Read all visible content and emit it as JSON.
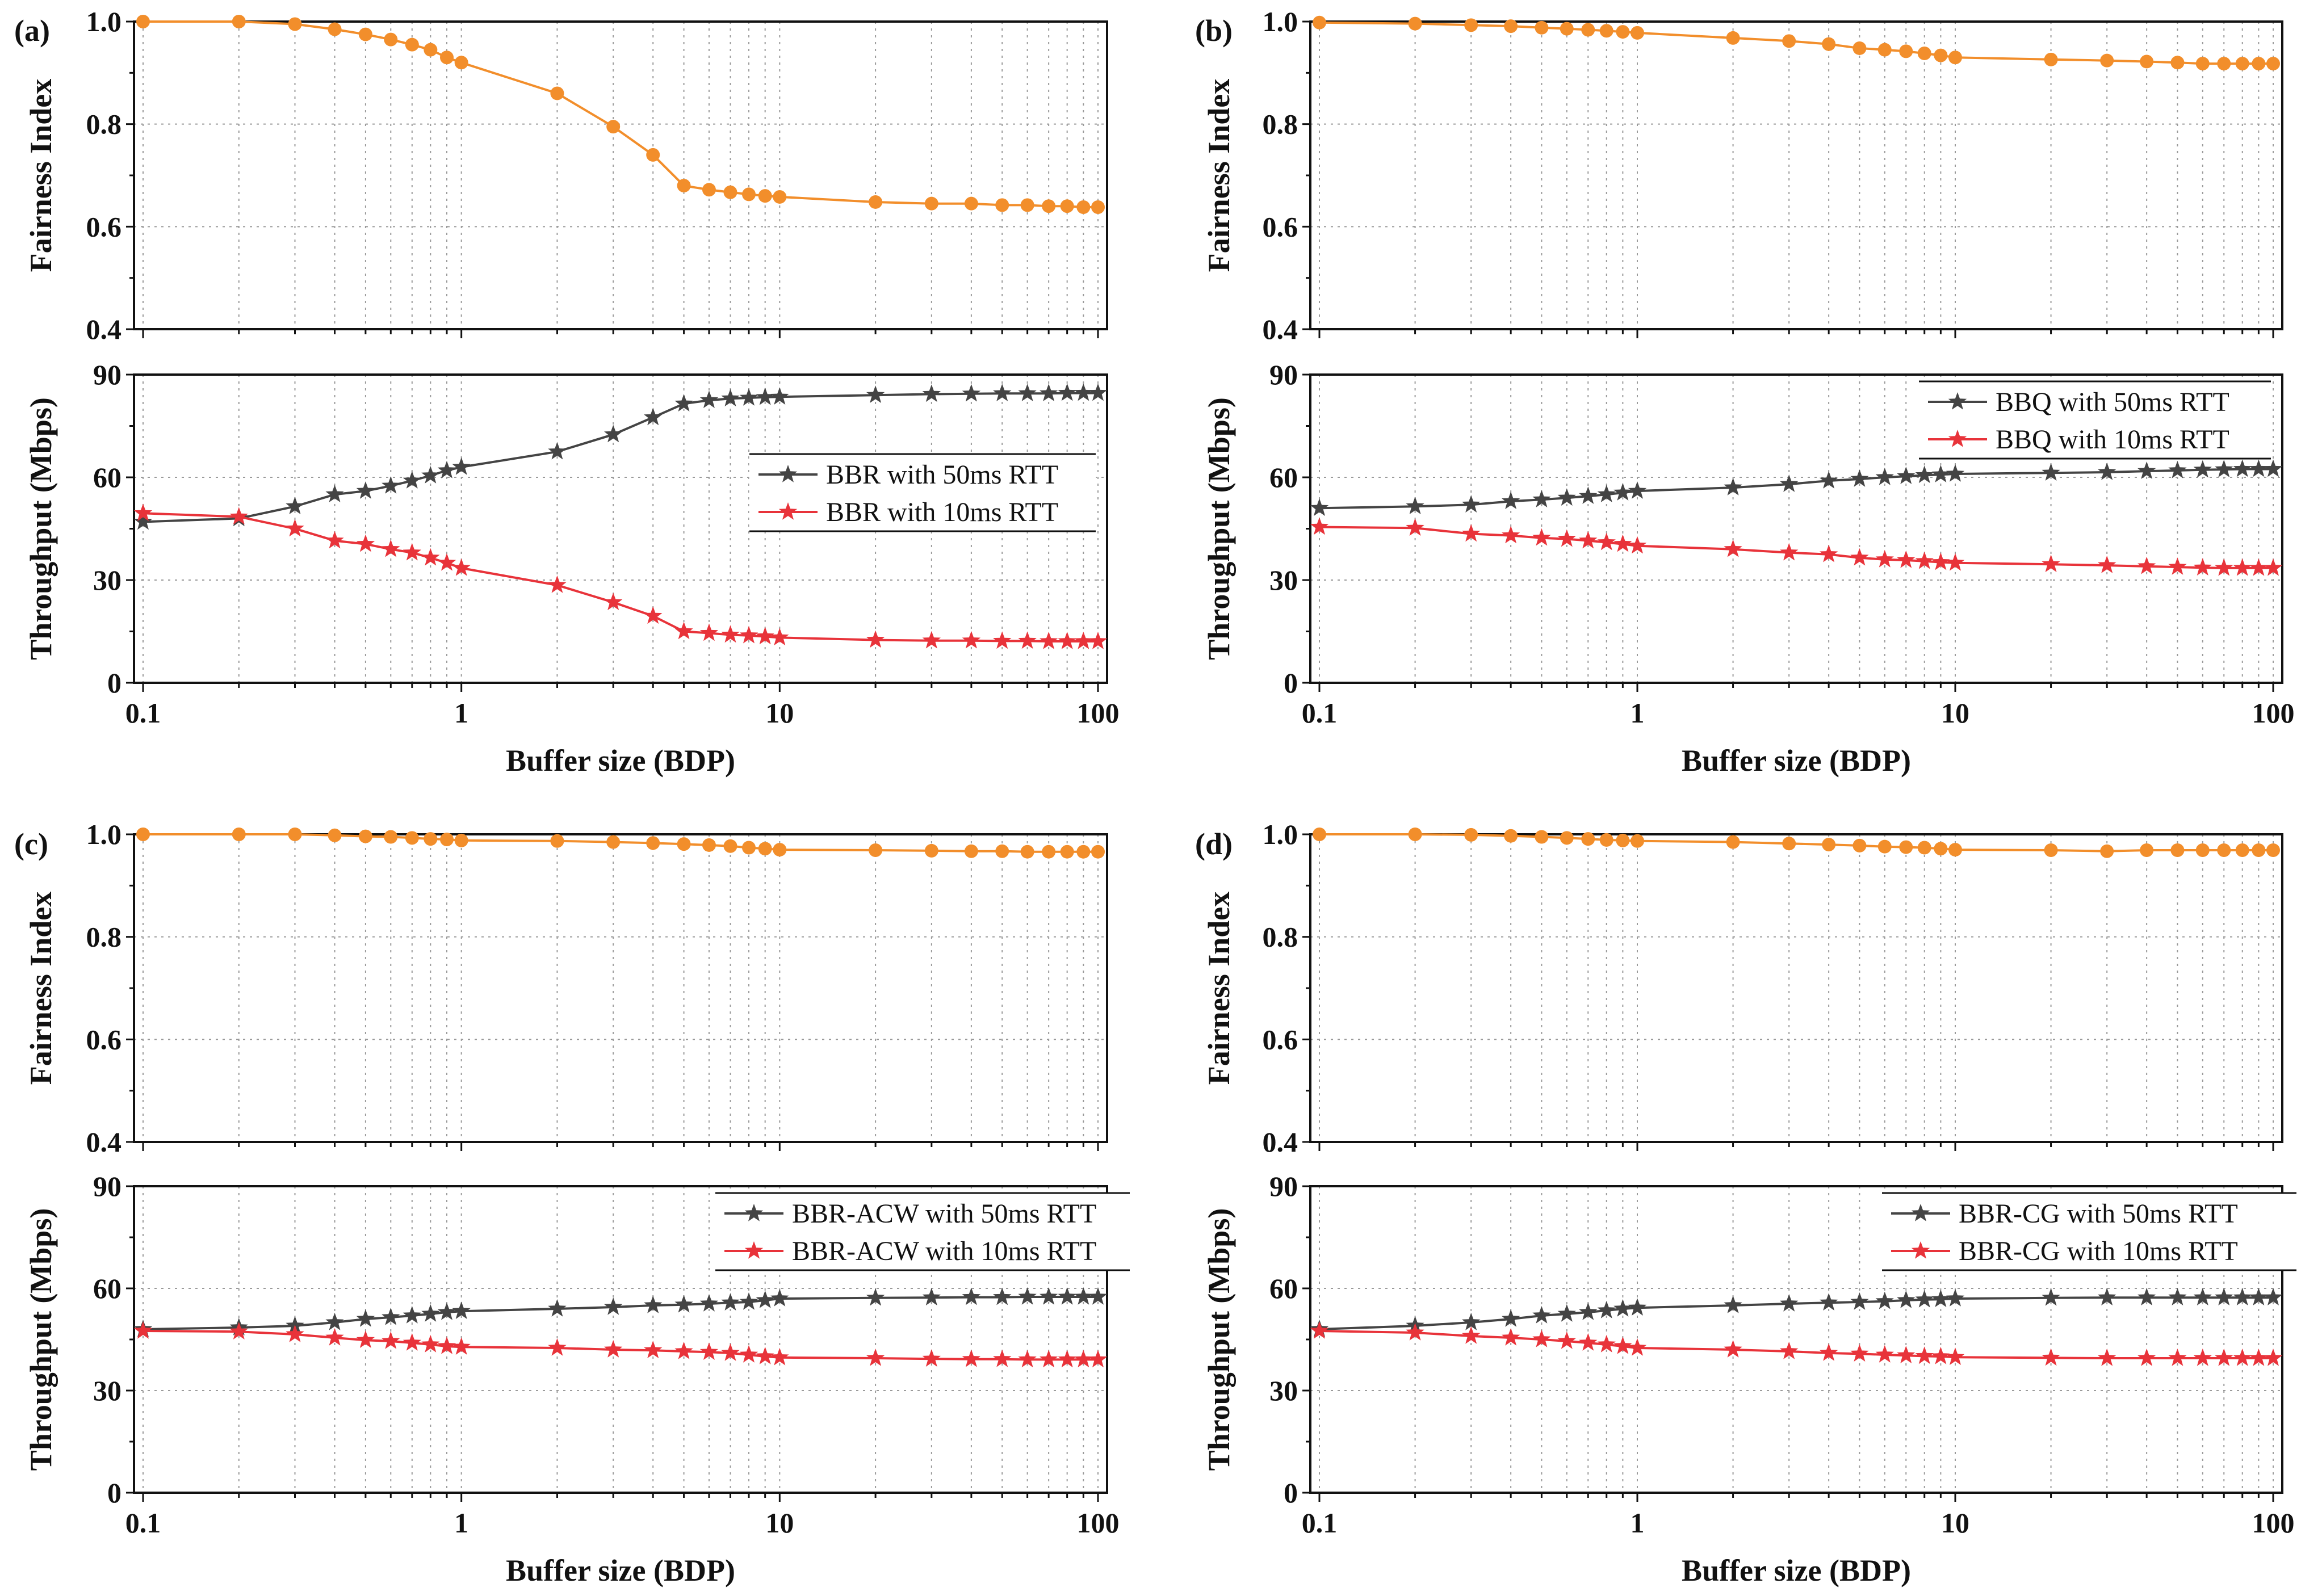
{
  "colors": {
    "fairness": "#F28E2B",
    "rtt50": "#444444",
    "rtt10": "#E8333A",
    "grid": "#9a9a9a",
    "axis": "#111111"
  },
  "chart_data": [
    {
      "panel": "(a)",
      "type": "line",
      "x": [
        0.1,
        0.2,
        0.3,
        0.4,
        0.5,
        0.6,
        0.7,
        0.8,
        0.9,
        1,
        2,
        3,
        4,
        5,
        6,
        7,
        8,
        9,
        10,
        20,
        30,
        40,
        50,
        60,
        70,
        80,
        90,
        100
      ],
      "fairness": {
        "ylabel": "Fairness Index",
        "ylim": [
          0.4,
          1.0
        ],
        "yticks": [
          "0.4",
          "0.6",
          "0.8",
          "1.0"
        ],
        "values": [
          1.0,
          1.0,
          0.995,
          0.985,
          0.975,
          0.965,
          0.955,
          0.945,
          0.93,
          0.92,
          0.86,
          0.795,
          0.74,
          0.68,
          0.672,
          0.667,
          0.663,
          0.66,
          0.658,
          0.648,
          0.645,
          0.645,
          0.642,
          0.642,
          0.64,
          0.64,
          0.638,
          0.638
        ]
      },
      "throughput": {
        "ylabel": "Throughput (Mbps)",
        "ylim": [
          0,
          90
        ],
        "yticks": [
          "0",
          "30",
          "60",
          "90"
        ],
        "series": [
          {
            "name": "BBR with 50ms RTT",
            "values": [
              47,
              48,
              51.5,
              55,
              56,
              57.5,
              59,
              60.5,
              62,
              63,
              67.5,
              72.5,
              77.5,
              81.5,
              82.5,
              83,
              83.2,
              83.4,
              83.5,
              84,
              84.3,
              84.4,
              84.5,
              84.5,
              84.5,
              84.6,
              84.6,
              84.6
            ]
          },
          {
            "name": "BBR with 10ms RTT",
            "values": [
              49.5,
              48.5,
              45,
              41.5,
              40.5,
              39,
              38,
              36.5,
              35,
              33.5,
              28.5,
              23.5,
              19.5,
              15,
              14.5,
              14,
              13.8,
              13.5,
              13.2,
              12.5,
              12.3,
              12.3,
              12.2,
              12.2,
              12.1,
              12.1,
              12.1,
              12.1
            ]
          }
        ],
        "legend": "right-middle"
      },
      "xlabel": "Buffer size (BDP)",
      "xticks": [
        "0.1",
        "1",
        "10",
        "100"
      ]
    },
    {
      "panel": "(b)",
      "type": "line",
      "x": [
        0.1,
        0.2,
        0.3,
        0.4,
        0.5,
        0.6,
        0.7,
        0.8,
        0.9,
        1,
        2,
        3,
        4,
        5,
        6,
        7,
        8,
        9,
        10,
        20,
        30,
        40,
        50,
        60,
        70,
        80,
        90,
        100
      ],
      "fairness": {
        "ylabel": "Fairness Index",
        "ylim": [
          0.4,
          1.0
        ],
        "yticks": [
          "0.4",
          "0.6",
          "0.8",
          "1.0"
        ],
        "values": [
          0.998,
          0.996,
          0.993,
          0.991,
          0.988,
          0.986,
          0.984,
          0.982,
          0.98,
          0.978,
          0.968,
          0.962,
          0.956,
          0.948,
          0.945,
          0.942,
          0.938,
          0.934,
          0.93,
          0.926,
          0.924,
          0.922,
          0.92,
          0.918,
          0.918,
          0.918,
          0.918,
          0.918
        ]
      },
      "throughput": {
        "ylabel": "Throughput (Mbps)",
        "ylim": [
          0,
          90
        ],
        "yticks": [
          "0",
          "30",
          "60",
          "90"
        ],
        "series": [
          {
            "name": "BBQ with 50ms RTT",
            "values": [
              51,
              51.5,
              52,
              53,
              53.5,
              54,
              54.5,
              55,
              55.5,
              56,
              57,
              58,
              59,
              59.5,
              60,
              60.3,
              60.6,
              60.8,
              61,
              61.3,
              61.5,
              61.8,
              62,
              62.2,
              62.3,
              62.4,
              62.4,
              62.4
            ]
          },
          {
            "name": "BBQ with 10ms RTT",
            "values": [
              45.5,
              45.2,
              43.5,
              43,
              42.3,
              42,
              41.5,
              41,
              40.5,
              40,
              39,
              38,
              37.5,
              36.5,
              36,
              35.8,
              35.5,
              35.2,
              35,
              34.6,
              34.3,
              34,
              33.8,
              33.6,
              33.5,
              33.5,
              33.5,
              33.5
            ]
          }
        ],
        "legend": "top-right"
      },
      "xlabel": "Buffer size (BDP)",
      "xticks": [
        "0.1",
        "1",
        "10",
        "100"
      ]
    },
    {
      "panel": "(c)",
      "type": "line",
      "x": [
        0.1,
        0.2,
        0.3,
        0.4,
        0.5,
        0.6,
        0.7,
        0.8,
        0.9,
        1,
        2,
        3,
        4,
        5,
        6,
        7,
        8,
        9,
        10,
        20,
        30,
        40,
        50,
        60,
        70,
        80,
        90,
        100
      ],
      "fairness": {
        "ylabel": "Fairness Index",
        "ylim": [
          0.4,
          1.0
        ],
        "yticks": [
          "0.4",
          "0.6",
          "0.8",
          "1.0"
        ],
        "values": [
          1.0,
          1.0,
          1.0,
          0.998,
          0.996,
          0.995,
          0.993,
          0.991,
          0.99,
          0.988,
          0.987,
          0.985,
          0.983,
          0.981,
          0.979,
          0.977,
          0.974,
          0.972,
          0.97,
          0.969,
          0.968,
          0.967,
          0.967,
          0.966,
          0.966,
          0.966,
          0.966,
          0.966
        ]
      },
      "throughput": {
        "ylabel": "Throughput (Mbps)",
        "ylim": [
          0,
          90
        ],
        "yticks": [
          "0",
          "30",
          "60",
          "90"
        ],
        "series": [
          {
            "name": "BBR-ACW with 50ms RTT",
            "values": [
              48,
              48.5,
              49,
              50,
              51,
              51.5,
              52,
              52.5,
              53,
              53.3,
              54,
              54.5,
              55,
              55.2,
              55.5,
              55.8,
              56,
              56.5,
              57,
              57.2,
              57.3,
              57.4,
              57.4,
              57.5,
              57.5,
              57.5,
              57.5,
              57.5
            ]
          },
          {
            "name": "BBR-ACW with 10ms RTT",
            "values": [
              47.5,
              47.3,
              46.5,
              45.5,
              44.8,
              44.5,
              44,
              43.5,
              43,
              42.8,
              42.5,
              42,
              41.8,
              41.5,
              41.3,
              41,
              40.5,
              40,
              39.7,
              39.5,
              39.3,
              39.2,
              39.2,
              39.1,
              39.1,
              39.1,
              39.1,
              39.1
            ]
          }
        ],
        "legend": "top-right"
      },
      "xlabel": "Buffer size (BDP)",
      "xticks": [
        "0.1",
        "1",
        "10",
        "100"
      ]
    },
    {
      "panel": "(d)",
      "type": "line",
      "x": [
        0.1,
        0.2,
        0.3,
        0.4,
        0.5,
        0.6,
        0.7,
        0.8,
        0.9,
        1,
        2,
        3,
        4,
        5,
        6,
        7,
        8,
        9,
        10,
        20,
        30,
        40,
        50,
        60,
        70,
        80,
        90,
        100
      ],
      "fairness": {
        "ylabel": "Fairness Index",
        "ylim": [
          0.4,
          1.0
        ],
        "yticks": [
          "0.4",
          "0.6",
          "0.8",
          "1.0"
        ],
        "values": [
          1.0,
          1.0,
          0.999,
          0.997,
          0.995,
          0.993,
          0.991,
          0.989,
          0.988,
          0.987,
          0.985,
          0.982,
          0.98,
          0.978,
          0.976,
          0.975,
          0.974,
          0.972,
          0.97,
          0.969,
          0.967,
          0.969,
          0.969,
          0.969,
          0.969,
          0.969,
          0.969,
          0.969
        ]
      },
      "throughput": {
        "ylabel": "Throughput (Mbps)",
        "ylim": [
          0,
          90
        ],
        "yticks": [
          "0",
          "30",
          "60",
          "90"
        ],
        "series": [
          {
            "name": "BBR-CG with 50ms RTT",
            "values": [
              48,
              49,
              50,
              51,
              52,
              52.5,
              53,
              53.5,
              54,
              54.3,
              55,
              55.5,
              55.8,
              56,
              56.2,
              56.5,
              56.7,
              56.8,
              57,
              57.2,
              57.3,
              57.3,
              57.3,
              57.3,
              57.3,
              57.3,
              57.3,
              57.3
            ]
          },
          {
            "name": "BBR-CG with 10ms RTT",
            "values": [
              47.5,
              47,
              46,
              45.5,
              45,
              44.5,
              44,
              43.5,
              43,
              42.5,
              42,
              41.5,
              41,
              40.8,
              40.5,
              40.3,
              40.1,
              40,
              39.8,
              39.6,
              39.5,
              39.5,
              39.5,
              39.5,
              39.5,
              39.5,
              39.5,
              39.5
            ]
          }
        ],
        "legend": "top-right"
      },
      "xlabel": "Buffer size (BDP)",
      "xticks": [
        "0.1",
        "1",
        "10",
        "100"
      ]
    }
  ]
}
